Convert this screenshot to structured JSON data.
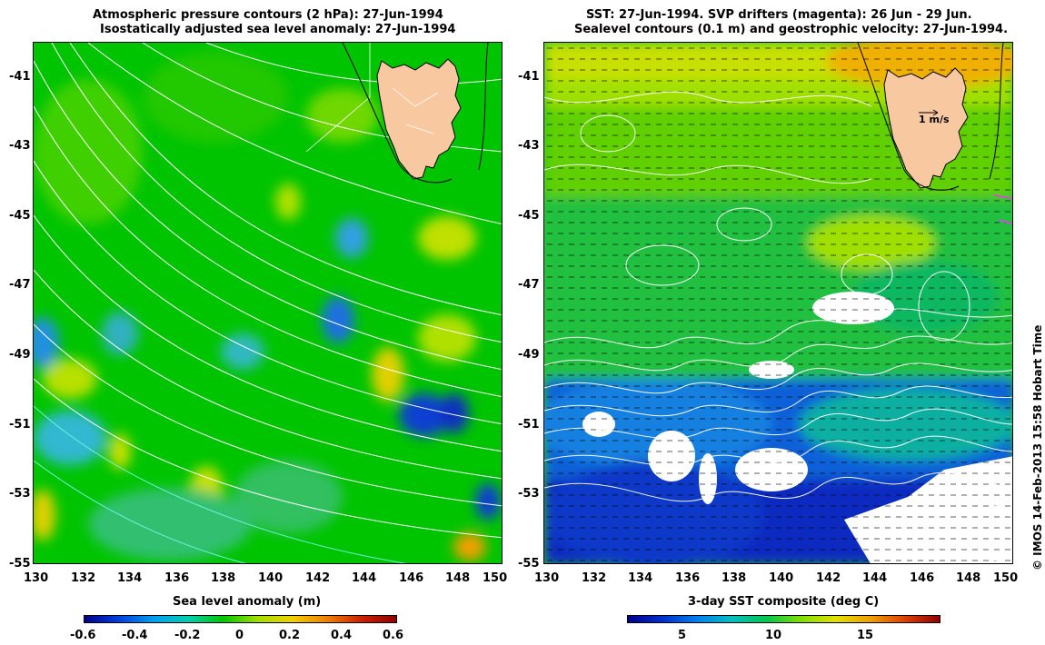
{
  "left_panel": {
    "title_line1": "Atmospheric pressure contours (2 hPa): 27-Jun-1994",
    "title_line2": "Isostatically adjusted sea level anomaly: 27-Jun-1994",
    "colorbar_title": "Sea level anomaly (m)",
    "colorbar_ticks": [
      "-0.6",
      "-0.4",
      "-0.2",
      "0",
      "0.2",
      "0.4",
      "0.6"
    ]
  },
  "right_panel": {
    "title_line1": "SST: 27-Jun-1994. SVP drifters (magenta): 26 Jun - 29 Jun.",
    "title_line2": "Sealevel contours (0.1 m) and geostrophic velocity: 27-Jun-1994.",
    "scale_label": "1 m/s",
    "colorbar_title": "3-day SST composite (deg C)",
    "colorbar_ticks": [
      "5",
      "10",
      "15"
    ]
  },
  "axes": {
    "x_ticks": [
      "130",
      "132",
      "134",
      "136",
      "138",
      "140",
      "142",
      "144",
      "146",
      "148",
      "150"
    ],
    "y_ticks": [
      "-41",
      "-43",
      "-45",
      "-47",
      "-49",
      "-51",
      "-53",
      "-55"
    ]
  },
  "watermark": "© IMOS 14-Feb-2013 15:58 Hobart Time",
  "colors": {
    "land": "#f8c8a0",
    "sla_background": "#00c800",
    "sst_background": "#22c830"
  }
}
